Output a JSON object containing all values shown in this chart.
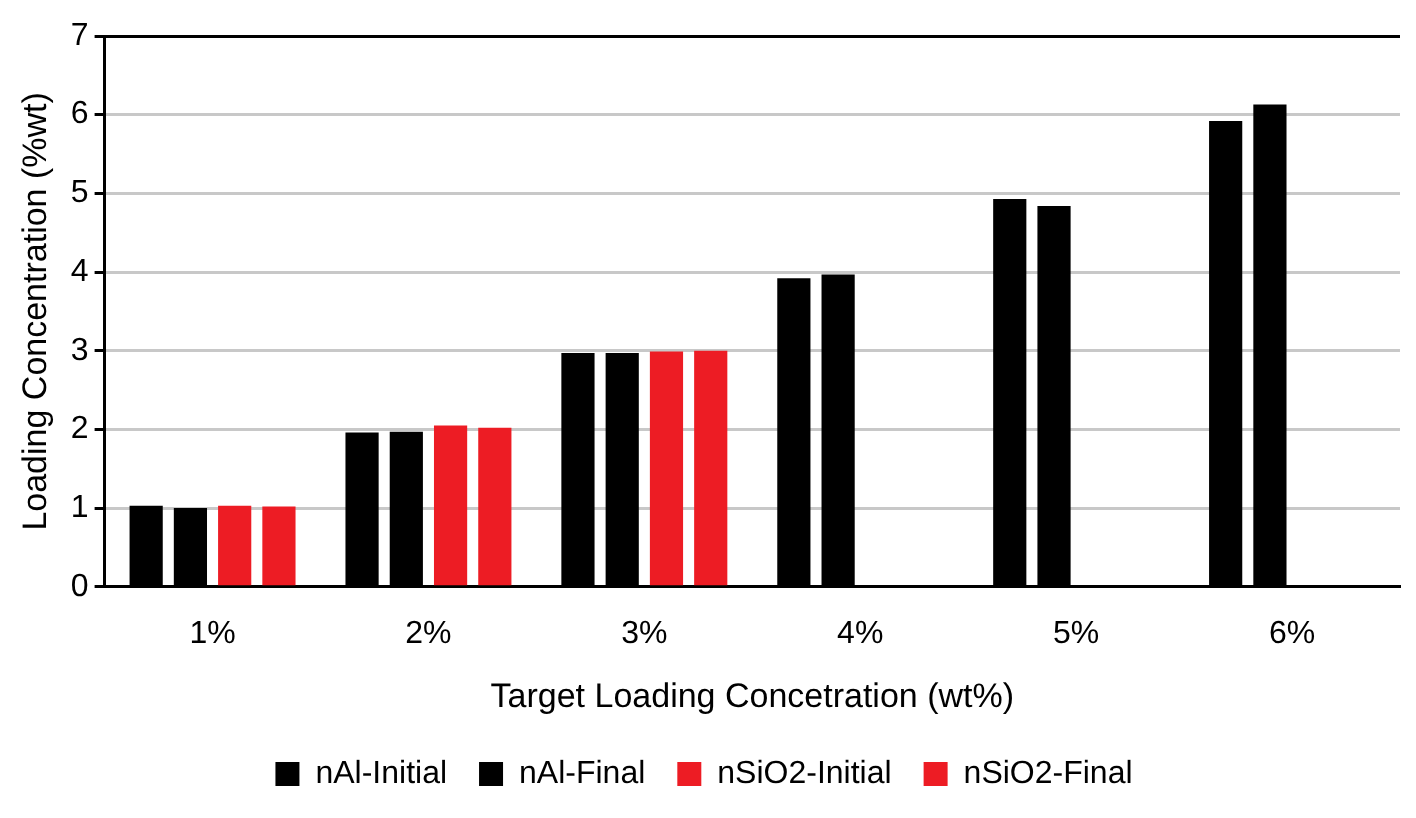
{
  "chart_data": {
    "type": "bar",
    "xlabel": "Target Loading Concetration (wt%)",
    "ylabel": "Loading Concentration (%wt)",
    "categories": [
      "1%",
      "2%",
      "3%",
      "4%",
      "5%",
      "6%"
    ],
    "series": [
      {
        "name": "nAl-Initial",
        "color": "#000000",
        "values": [
          1.03,
          1.96,
          2.97,
          3.92,
          4.93,
          5.92
        ]
      },
      {
        "name": "nAl-Final",
        "color": "#000000",
        "values": [
          1.0,
          1.97,
          2.97,
          3.97,
          4.84,
          6.13
        ]
      },
      {
        "name": "nSiO2-Initial",
        "color": "#ed1c24",
        "values": [
          1.03,
          2.05,
          2.99,
          null,
          null,
          null
        ]
      },
      {
        "name": "nSiO2-Final",
        "color": "#ed1c24",
        "values": [
          1.02,
          2.02,
          3.0,
          null,
          null,
          null
        ]
      }
    ],
    "ylim": [
      0,
      7
    ],
    "yticks": [
      0,
      1,
      2,
      3,
      4,
      5,
      6,
      7
    ],
    "grid": "y",
    "legend": "bottom"
  }
}
